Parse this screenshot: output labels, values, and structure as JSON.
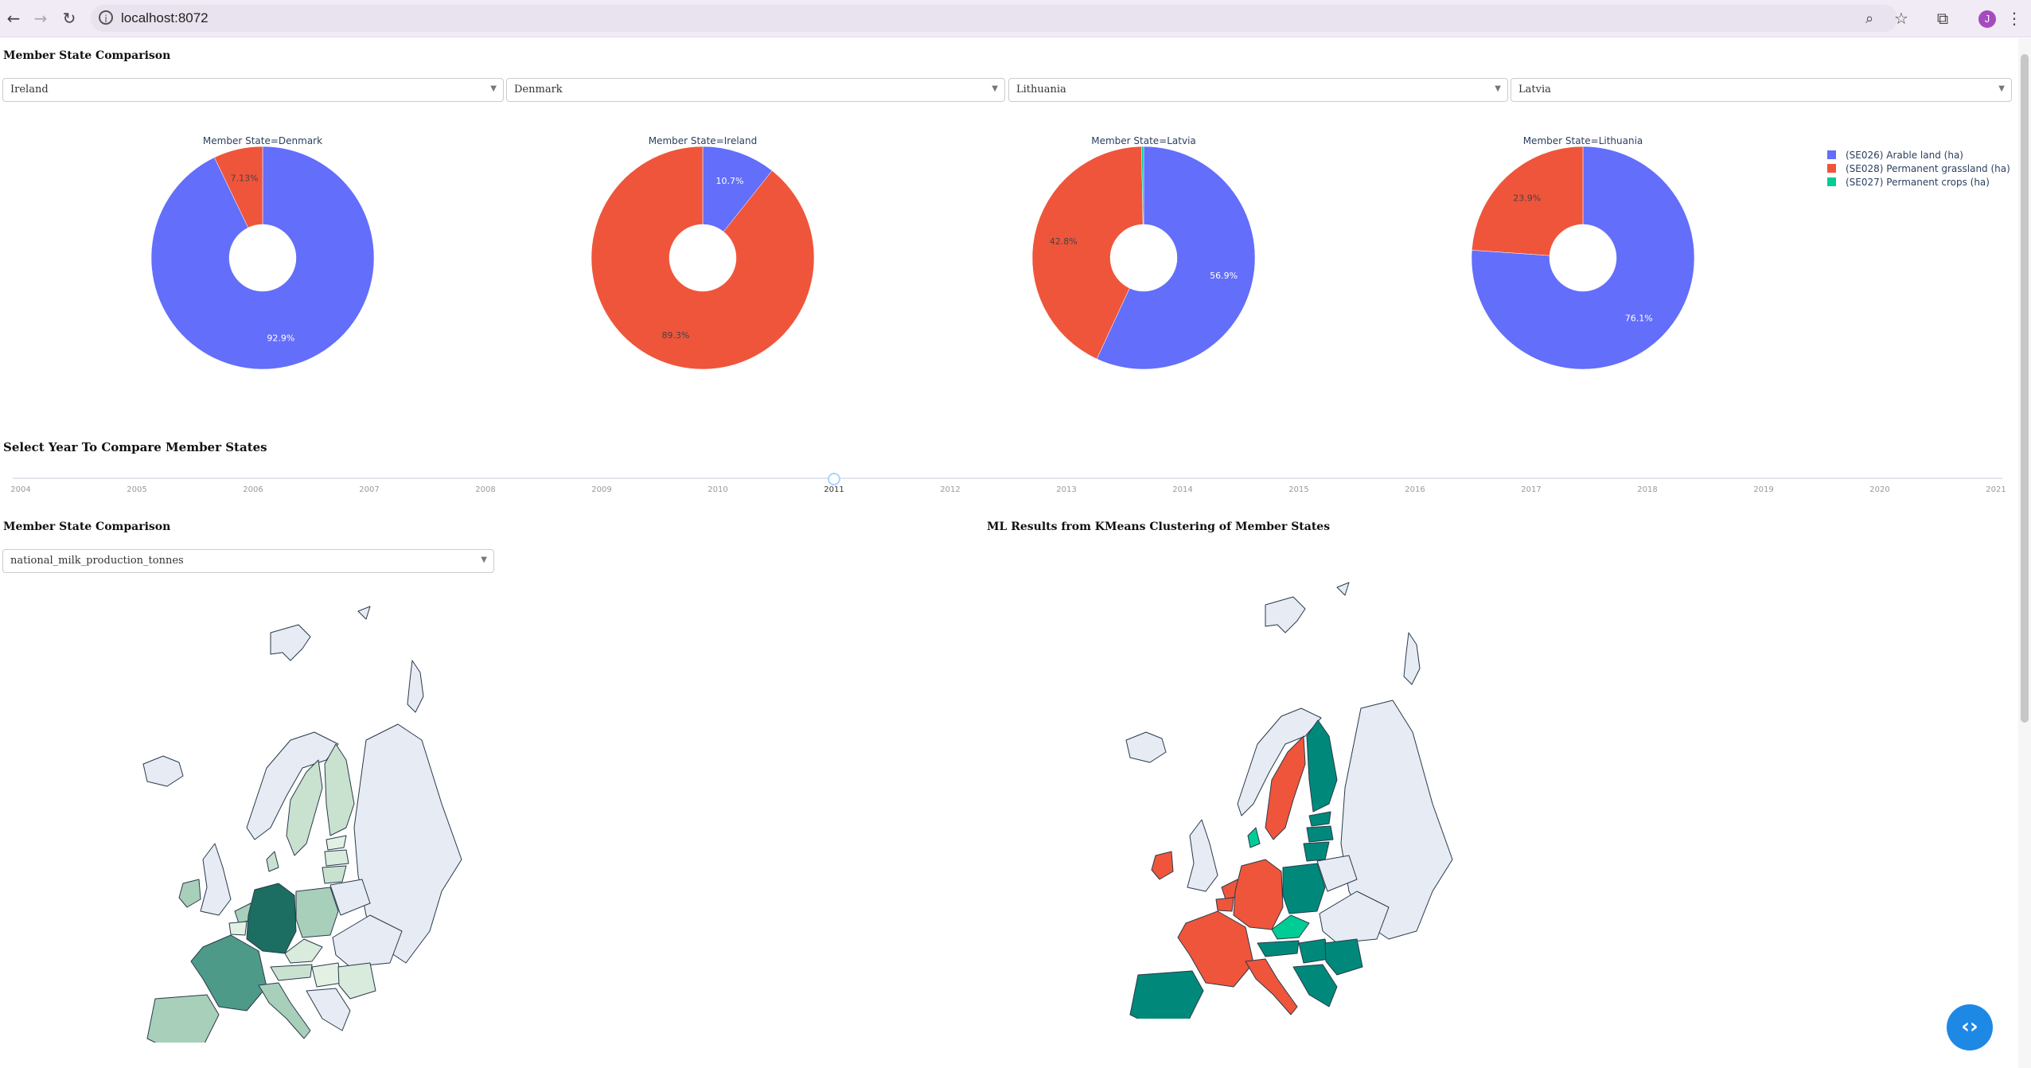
{
  "browser": {
    "url": "localhost:8072",
    "profile_initial": "J"
  },
  "top_section": {
    "heading": "Member State Comparison",
    "dropdowns": [
      "Ireland",
      "Denmark",
      "Lithuania",
      "Latvia"
    ]
  },
  "legend": [
    {
      "label": "(SE026) Arable land (ha)",
      "color": "#636efa"
    },
    {
      "label": "(SE028) Permanent grassland (ha)",
      "color": "#ef553b"
    },
    {
      "label": "(SE027) Permanent crops (ha)",
      "color": "#00cc96"
    }
  ],
  "chart_data": [
    {
      "type": "pie",
      "title": "Member State=Denmark",
      "labels": [
        "(SE026) Arable land (ha)",
        "(SE028) Permanent grassland (ha)",
        "(SE027) Permanent crops (ha)"
      ],
      "values": [
        92.9,
        7.13,
        0.0
      ],
      "text": [
        "92.9%",
        "7.13%",
        ""
      ]
    },
    {
      "type": "pie",
      "title": "Member State=Ireland",
      "labels": [
        "(SE026) Arable land (ha)",
        "(SE028) Permanent grassland (ha)",
        "(SE027) Permanent crops (ha)"
      ],
      "values": [
        10.7,
        89.3,
        0.0
      ],
      "text": [
        "10.7%",
        "89.3%",
        ""
      ]
    },
    {
      "type": "pie",
      "title": "Member State=Latvia",
      "labels": [
        "(SE026) Arable land (ha)",
        "(SE028) Permanent grassland (ha)",
        "(SE027) Permanent crops (ha)"
      ],
      "values": [
        56.9,
        42.8,
        0.3
      ],
      "text": [
        "56.9%",
        "42.8%",
        ""
      ]
    },
    {
      "type": "pie",
      "title": "Member State=Lithuania",
      "labels": [
        "(SE026) Arable land (ha)",
        "(SE028) Permanent grassland (ha)",
        "(SE027) Permanent crops (ha)"
      ],
      "values": [
        76.1,
        23.9,
        0.0
      ],
      "text": [
        "76.1%",
        "23.9%",
        ""
      ]
    }
  ],
  "year_slider": {
    "heading": "Select Year To Compare Member States",
    "years": [
      "2004",
      "2005",
      "2006",
      "2007",
      "2008",
      "2009",
      "2010",
      "2011",
      "2012",
      "2013",
      "2014",
      "2015",
      "2016",
      "2017",
      "2018",
      "2019",
      "2020",
      "2021"
    ],
    "selected": "2011"
  },
  "map_section": {
    "heading": "Member State Comparison",
    "metric_dropdown": "national_milk_production_tonnes",
    "cluster_heading": "ML Results from KMeans Clustering of Member States",
    "cluster_colors": {
      "cluster_a": "#ef553b",
      "cluster_b": "#00897b",
      "cluster_c": "#00cc96"
    }
  }
}
